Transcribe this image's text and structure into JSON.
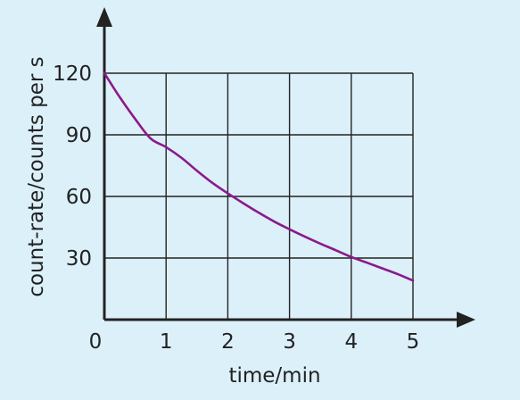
{
  "chart_data": {
    "type": "line",
    "title": "",
    "xlabel": "time/min",
    "ylabel": "count-rate/counts per s",
    "xlim": [
      0,
      5
    ],
    "ylim": [
      0,
      120
    ],
    "x_ticks": [
      0,
      1,
      2,
      3,
      4,
      5
    ],
    "x_tick_labels": [
      "0",
      "1",
      "2",
      "3",
      "4",
      "5"
    ],
    "y_ticks": [
      30,
      60,
      90,
      120
    ],
    "y_tick_labels": [
      "30",
      "60",
      "90",
      "120"
    ],
    "grid": true,
    "legend": "none",
    "series": [
      {
        "color": "#8b1a8b",
        "x": [
          0,
          0.25,
          0.5,
          0.75,
          1,
          1.25,
          1.5,
          1.75,
          2,
          2.25,
          2.5,
          2.75,
          3,
          3.25,
          3.5,
          3.75,
          4,
          4.25,
          4.5,
          4.75,
          5
        ],
        "y": [
          120,
          108.3,
          97.7,
          88.2,
          84,
          78.8,
          72.5,
          66.6,
          61.5,
          56.7,
          52.1,
          47.8,
          44,
          40.4,
          37,
          33.8,
          30.5,
          27.8,
          25,
          22.2,
          19
        ]
      }
    ]
  },
  "colors": {
    "background": "#dcf0fa",
    "axis": "#222222",
    "grid": "#222222",
    "curve": "#8b1a8b"
  }
}
